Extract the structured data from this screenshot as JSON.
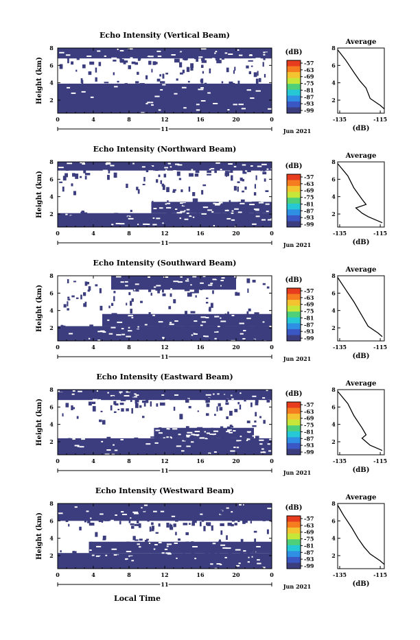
{
  "panels": [
    {
      "title": "Echo Intensity (Vertical Beam)",
      "avg_title": "Average",
      "chart_data": {
        "type": "heatmap",
        "title": "Echo Intensity (Vertical Beam)",
        "xlabel": "",
        "ylabel": "Height (km)",
        "x_ticks": [
          "0",
          "4",
          "8",
          "12",
          "16",
          "20",
          "0"
        ],
        "y_ticks": [
          "2",
          "4",
          "6",
          "8"
        ],
        "xlim": [
          0,
          24
        ],
        "ylim": [
          0.5,
          8
        ],
        "day_label": "11",
        "date_label": "Jun 2021",
        "colorbar": {
          "label": "(dB)",
          "ticks": [
            "-57",
            "-63",
            "-69",
            "-75",
            "-81",
            "-87",
            "-93",
            "-99"
          ]
        },
        "layers": [
          {
            "from_hour": 0,
            "to_hour": 24,
            "bottom_km": 0.5,
            "top_km": 3.9
          },
          {
            "from_hour": 0,
            "to_hour": 24,
            "bottom_km": 6.8,
            "top_km": 8.0
          }
        ],
        "average_profile": {
          "xlabel": "(dB)",
          "x_ticks": [
            "-135",
            "-115"
          ],
          "y_ticks": [
            "2",
            "4",
            "6",
            "8"
          ],
          "xlim": [
            -136,
            -113
          ],
          "ylim": [
            0.5,
            8
          ],
          "x": [
            -136,
            -132,
            -128,
            -125,
            -122,
            -120,
            -115,
            -113
          ],
          "y": [
            7.8,
            6.6,
            5.2,
            4.2,
            3.4,
            2.2,
            1.4,
            1.0
          ]
        }
      }
    },
    {
      "title": "Echo Intensity (Northward Beam)",
      "avg_title": "Average",
      "chart_data": {
        "type": "heatmap",
        "title": "Echo Intensity (Northward Beam)",
        "xlabel": "",
        "ylabel": "Height (km)",
        "x_ticks": [
          "0",
          "4",
          "8",
          "12",
          "16",
          "20",
          "0"
        ],
        "y_ticks": [
          "2",
          "4",
          "6",
          "8"
        ],
        "xlim": [
          0,
          24
        ],
        "ylim": [
          0.5,
          8
        ],
        "day_label": "11",
        "date_label": "Jun 2021",
        "colorbar": {
          "label": "(dB)",
          "ticks": [
            "-57",
            "-63",
            "-69",
            "-75",
            "-81",
            "-87",
            "-93",
            "-99"
          ]
        },
        "layers": [
          {
            "from_hour": 0,
            "to_hour": 24,
            "bottom_km": 0.5,
            "top_km": 2.1
          },
          {
            "from_hour": 10.5,
            "to_hour": 24,
            "bottom_km": 2.1,
            "top_km": 3.4
          },
          {
            "from_hour": 0,
            "to_hour": 24,
            "bottom_km": 7.0,
            "top_km": 8.0
          }
        ],
        "average_profile": {
          "xlabel": "(dB)",
          "x_ticks": [
            "-135",
            "-115"
          ],
          "y_ticks": [
            "2",
            "4",
            "6",
            "8"
          ],
          "xlim": [
            -136,
            -113
          ],
          "ylim": [
            0.5,
            8
          ],
          "x": [
            -136,
            -131,
            -128,
            -124,
            -122,
            -127,
            -124,
            -121,
            -114
          ],
          "y": [
            7.8,
            6.4,
            5.0,
            3.7,
            3.1,
            2.7,
            2.1,
            1.7,
            1.0
          ]
        }
      }
    },
    {
      "title": "Echo Intensity (Southward Beam)",
      "avg_title": "Average",
      "chart_data": {
        "type": "heatmap",
        "title": "Echo Intensity (Southward Beam)",
        "xlabel": "",
        "ylabel": "Height (km)",
        "x_ticks": [
          "0",
          "4",
          "8",
          "12",
          "16",
          "20",
          "0"
        ],
        "y_ticks": [
          "2",
          "4",
          "6",
          "8"
        ],
        "xlim": [
          0,
          24
        ],
        "ylim": [
          0.5,
          8
        ],
        "day_label": "11",
        "date_label": "Jun 2021",
        "colorbar": {
          "label": "(dB)",
          "ticks": [
            "-57",
            "-63",
            "-69",
            "-75",
            "-81",
            "-87",
            "-93",
            "-99"
          ]
        },
        "layers": [
          {
            "from_hour": 0,
            "to_hour": 24,
            "bottom_km": 0.5,
            "top_km": 2.2
          },
          {
            "from_hour": 5,
            "to_hour": 24,
            "bottom_km": 2.2,
            "top_km": 3.6
          },
          {
            "from_hour": 6,
            "to_hour": 20,
            "bottom_km": 6.4,
            "top_km": 8.0
          }
        ],
        "average_profile": {
          "xlabel": "(dB)",
          "x_ticks": [
            "-135",
            "-115"
          ],
          "y_ticks": [
            "2",
            "4",
            "6",
            "8"
          ],
          "xlim": [
            -136,
            -113
          ],
          "ylim": [
            0.5,
            8
          ],
          "x": [
            -136,
            -132,
            -128,
            -125,
            -123,
            -121,
            -116,
            -114
          ],
          "y": [
            7.8,
            6.4,
            5.0,
            3.8,
            3.0,
            2.2,
            1.4,
            1.0
          ]
        }
      }
    },
    {
      "title": "Echo Intensity (Eastward Beam)",
      "avg_title": "Average",
      "chart_data": {
        "type": "heatmap",
        "title": "Echo Intensity (Eastward Beam)",
        "xlabel": "",
        "ylabel": "Height (km)",
        "x_ticks": [
          "0",
          "4",
          "8",
          "12",
          "16",
          "20",
          "0"
        ],
        "y_ticks": [
          "2",
          "4",
          "6",
          "8"
        ],
        "xlim": [
          0,
          24
        ],
        "ylim": [
          0.5,
          8
        ],
        "day_label": "11",
        "date_label": "Jun 2021",
        "colorbar": {
          "label": "(dB)",
          "ticks": [
            "-57",
            "-63",
            "-69",
            "-75",
            "-81",
            "-87",
            "-93",
            "-99"
          ]
        },
        "layers": [
          {
            "from_hour": 0,
            "to_hour": 24,
            "bottom_km": 0.5,
            "top_km": 2.4
          },
          {
            "from_hour": 10.8,
            "to_hour": 22,
            "bottom_km": 2.4,
            "top_km": 3.6
          },
          {
            "from_hour": 0,
            "to_hour": 24,
            "bottom_km": 6.8,
            "top_km": 8.0
          }
        ],
        "average_profile": {
          "xlabel": "(dB)",
          "x_ticks": [
            "-135",
            "-115"
          ],
          "y_ticks": [
            "2",
            "4",
            "6",
            "8"
          ],
          "xlim": [
            -136,
            -113
          ],
          "ylim": [
            0.5,
            8
          ],
          "x": [
            -136,
            -131,
            -128,
            -124,
            -122,
            -124,
            -120,
            -114
          ],
          "y": [
            7.8,
            6.4,
            5.0,
            3.6,
            2.8,
            2.4,
            1.6,
            1.0
          ]
        }
      }
    },
    {
      "title": "Echo Intensity (Westward Beam)",
      "avg_title": "Average",
      "chart_data": {
        "type": "heatmap",
        "title": "Echo Intensity (Westward Beam)",
        "xlabel": "Local Time",
        "ylabel": "Height (km)",
        "x_ticks": [
          "0",
          "4",
          "8",
          "12",
          "16",
          "20",
          "0"
        ],
        "y_ticks": [
          "2",
          "4",
          "6",
          "8"
        ],
        "xlim": [
          0,
          24
        ],
        "ylim": [
          0.5,
          8
        ],
        "day_label": "11",
        "date_label": "Jun 2021",
        "colorbar": {
          "label": "(dB)",
          "ticks": [
            "-57",
            "-63",
            "-69",
            "-75",
            "-81",
            "-87",
            "-93",
            "-99"
          ]
        },
        "layers": [
          {
            "from_hour": 0,
            "to_hour": 24,
            "bottom_km": 0.5,
            "top_km": 2.3
          },
          {
            "from_hour": 3.5,
            "to_hour": 24,
            "bottom_km": 2.3,
            "top_km": 3.6
          },
          {
            "from_hour": 0,
            "to_hour": 24,
            "bottom_km": 6.0,
            "top_km": 8.0
          }
        ],
        "average_profile": {
          "xlabel": "(dB)",
          "x_ticks": [
            "-135",
            "-115"
          ],
          "y_ticks": [
            "2",
            "4",
            "6",
            "8"
          ],
          "xlim": [
            -136,
            -113
          ],
          "ylim": [
            0.5,
            8
          ],
          "x": [
            -136,
            -133,
            -129,
            -126,
            -123,
            -120,
            -115,
            -113
          ],
          "y": [
            7.8,
            6.6,
            5.2,
            4.0,
            3.0,
            2.2,
            1.4,
            1.0
          ]
        }
      }
    }
  ],
  "bottom_label": "Local Time",
  "colors": {
    "fill": "#3b3d7e",
    "colorbar": [
      "#e83c1e",
      "#f57c1f",
      "#f4c430",
      "#c6e63a",
      "#4ed07a",
      "#26c8d6",
      "#2f8fe3",
      "#3b57c4",
      "#3b3d7e"
    ]
  }
}
